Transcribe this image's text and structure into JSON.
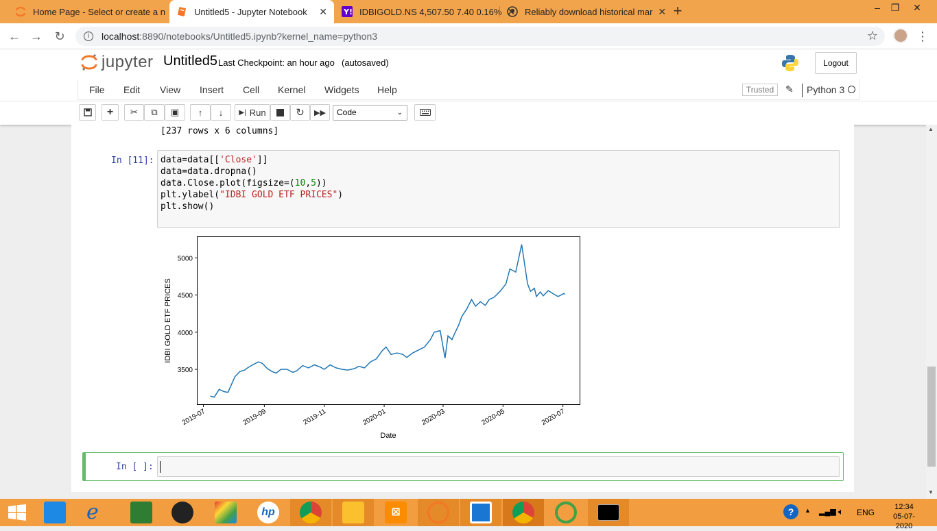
{
  "browser": {
    "tabs": [
      {
        "title": "Home Page - Select or create a n",
        "icon": "jupyter-icon"
      },
      {
        "title": "Untitled5 - Jupyter Notebook",
        "icon": "notebook-icon"
      },
      {
        "title": "IDBIGOLD.NS 4,507.50 7.40 0.16%",
        "icon": "yahoo-icon"
      },
      {
        "title": "Reliably download historical mar",
        "icon": "github-icon"
      }
    ],
    "url_host": "localhost",
    "url_path": ":8890/notebooks/Untitled5.ipynb?kernel_name=python3"
  },
  "jupyter": {
    "logo_text": "jupyter",
    "notebook_name": "Untitled5",
    "checkpoint": "Last Checkpoint: an hour ago",
    "autosaved": "(autosaved)",
    "logout_label": "Logout",
    "menus": [
      "File",
      "Edit",
      "View",
      "Insert",
      "Cell",
      "Kernel",
      "Widgets",
      "Help"
    ],
    "trusted_label": "Trusted",
    "kernel_name": "Python 3",
    "run_label": "Run",
    "cell_type": "Code"
  },
  "cells": {
    "prev_output": "[237 rows x 6 columns]",
    "in11_prompt": "In [11]:",
    "new_prompt": "In [ ]:"
  },
  "chart_data": {
    "type": "line",
    "xlabel": "Date",
    "ylabel": "IDBI GOLD ETF PRICES",
    "x_ticks": [
      "2019-07",
      "2019-09",
      "2019-11",
      "2020-01",
      "2020-03",
      "2020-05",
      "2020-07"
    ],
    "y_ticks": [
      3500,
      4000,
      4500,
      5000
    ],
    "ylim": [
      3030,
      5280
    ],
    "color": "#1f77b4",
    "series": [
      {
        "x": [
          "2019-07-08",
          "2019-07-12",
          "2019-07-17",
          "2019-07-22",
          "2019-07-26",
          "2019-08-02",
          "2019-08-07",
          "2019-08-12",
          "2019-08-15",
          "2019-08-20",
          "2019-08-26",
          "2019-08-30",
          "2019-09-04",
          "2019-09-09",
          "2019-09-13",
          "2019-09-18",
          "2019-09-24",
          "2019-09-30",
          "2019-10-04",
          "2019-10-10",
          "2019-10-16",
          "2019-10-22",
          "2019-10-28",
          "2019-11-01",
          "2019-11-07",
          "2019-11-13",
          "2019-11-19",
          "2019-11-25",
          "2019-12-02",
          "2019-12-06",
          "2019-12-12",
          "2019-12-18",
          "2019-12-24",
          "2019-12-30",
          "2020-01-03",
          "2020-01-08",
          "2020-01-14",
          "2020-01-20",
          "2020-01-24",
          "2020-01-30",
          "2020-02-05",
          "2020-02-11",
          "2020-02-17",
          "2020-02-21",
          "2020-02-27",
          "2020-03-03",
          "2020-03-06",
          "2020-03-10",
          "2020-03-13",
          "2020-03-17",
          "2020-03-20",
          "2020-03-25",
          "2020-03-30",
          "2020-04-03",
          "2020-04-08",
          "2020-04-13",
          "2020-04-17",
          "2020-04-22",
          "2020-04-28",
          "2020-05-04",
          "2020-05-08",
          "2020-05-14",
          "2020-05-20",
          "2020-05-26",
          "2020-05-29",
          "2020-06-02",
          "2020-06-04",
          "2020-06-08",
          "2020-06-11",
          "2020-06-16",
          "2020-06-22",
          "2020-06-26",
          "2020-07-02",
          "2020-07-03"
        ],
        "y": [
          3140,
          3125,
          3230,
          3200,
          3190,
          3400,
          3470,
          3490,
          3520,
          3560,
          3600,
          3580,
          3510,
          3470,
          3450,
          3500,
          3500,
          3460,
          3480,
          3550,
          3520,
          3560,
          3530,
          3500,
          3560,
          3520,
          3500,
          3490,
          3510,
          3540,
          3520,
          3600,
          3640,
          3750,
          3800,
          3700,
          3720,
          3700,
          3660,
          3720,
          3760,
          3800,
          3900,
          4000,
          4020,
          3650,
          3950,
          3900,
          3990,
          4100,
          4210,
          4310,
          4440,
          4350,
          4410,
          4360,
          4440,
          4470,
          4550,
          4650,
          4850,
          4810,
          5180,
          4650,
          4550,
          4590,
          4480,
          4540,
          4490,
          4560,
          4510,
          4480,
          4520,
          4510
        ]
      }
    ]
  }
}
